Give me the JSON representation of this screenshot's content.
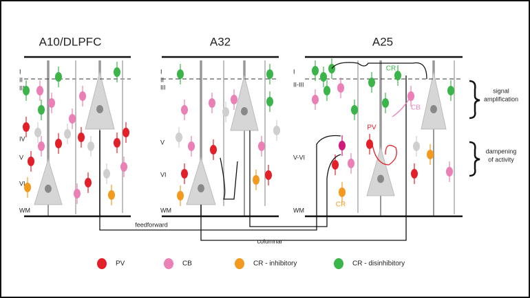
{
  "panels": [
    {
      "title": "A10/DLPFC",
      "layers": [
        "I",
        "II",
        "III",
        "IV",
        "V",
        "VI",
        "WM"
      ]
    },
    {
      "title": "A32",
      "layers": [
        "I",
        "II",
        "III",
        "V",
        "VI",
        "WM"
      ]
    },
    {
      "title": "A25",
      "layers": [
        "I",
        "II-III",
        "V-VI",
        "WM"
      ]
    }
  ],
  "annotations": {
    "upper": [
      "signal",
      "amplification"
    ],
    "lower": [
      "dampening",
      "of activity"
    ]
  },
  "pathways": [
    "feedforward",
    "columnar"
  ],
  "cell_labels": [
    "PV",
    "CB",
    "CR",
    "CR"
  ],
  "legend": [
    "PV",
    "CB",
    "CR - inhibitory",
    "CR - disinhibitory"
  ]
}
